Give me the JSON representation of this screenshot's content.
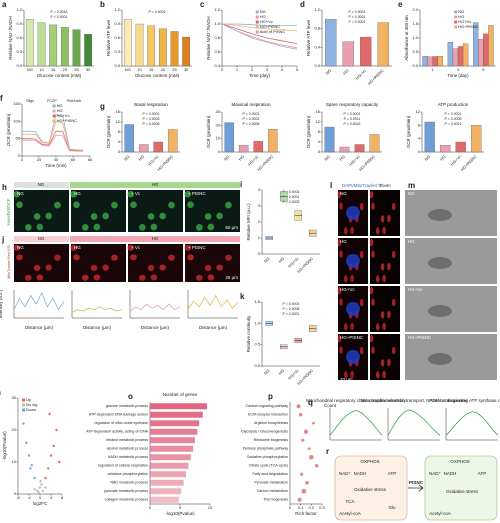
{
  "chart_data": [
    {
      "type": "bar",
      "panel": "a",
      "ylabel": "Relative NAD⁺/NADH",
      "xlabel": "Glucose content (mM)",
      "categories": [
        "NG",
        "10",
        "15",
        "20",
        "25",
        "30"
      ],
      "values": [
        1.0,
        0.93,
        0.88,
        0.83,
        0.78,
        0.68
      ],
      "colors": [
        "#d4e8b0",
        "#bcdc93",
        "#a3cf78",
        "#8cc063",
        "#6aa84f",
        "#3f8a3a"
      ],
      "ylim": [
        0,
        1.2
      ],
      "yticks": [
        {
          "value": 0,
          "label": "0.0"
        },
        0.3,
        0.6,
        0.9,
        1.2
      ],
      "annotations": [
        "P = 0.0018",
        "P < 0.0001"
      ]
    },
    {
      "type": "bar",
      "panel": "b",
      "ylabel": "Relative ATP level",
      "xlabel": "Glucose content (mM)",
      "categories": [
        "NG",
        "10",
        "15",
        "20",
        "25",
        "30"
      ],
      "values": [
        1.0,
        0.9,
        0.86,
        0.8,
        0.74,
        0.62
      ],
      "colors": [
        "#fbe9b7",
        "#f7d98c",
        "#f3c865",
        "#eeb445",
        "#e69a2e",
        "#d9801f"
      ],
      "ylim": [
        0,
        1.2
      ],
      "yticks": [
        {
          "value": 0,
          "label": "0.0"
        },
        0.3,
        0.6,
        0.9,
        1.2
      ],
      "annotations": [
        "P < 0.0001"
      ]
    },
    {
      "type": "line",
      "panel": "c",
      "ylabel": "Relative NAD⁺/NADH",
      "xlabel": "Time (day)",
      "x": [
        0,
        1,
        2,
        3,
        4,
        5
      ],
      "xlim": [
        0,
        5
      ],
      "xticks": [
        0,
        1,
        2,
        3,
        4,
        5
      ],
      "ylim": [
        0.4,
        1.2
      ],
      "yticks": [
        0.4,
        0.6,
        0.8,
        {
          "value": 1,
          "label": "1.0"
        },
        1.2
      ],
      "legend": true,
      "series": [
        {
          "name": "NG",
          "color": "#8fb3e0",
          "values": [
            1.0,
            1.0,
            0.99,
            0.98,
            0.98,
            0.98
          ]
        },
        {
          "name": "HG",
          "color": "#e59a9a",
          "values": [
            1.0,
            0.9,
            0.82,
            0.75,
            0.7,
            0.66
          ]
        },
        {
          "name": "HG+Vc",
          "color": "#c46a6a",
          "values": [
            1.0,
            0.93,
            0.86,
            0.8,
            0.76,
            0.72
          ]
        },
        {
          "name": "HG+PtSNC",
          "color": "#f2b266",
          "values": [
            1.0,
            0.98,
            0.95,
            0.93,
            0.92,
            0.9
          ]
        },
        {
          "name": "Acid of PtSNC",
          "color": "#b7a3d6",
          "values": [
            1.0,
            0.9,
            0.8,
            0.74,
            0.68,
            0.64
          ]
        }
      ]
    },
    {
      "type": "bar",
      "panel": "d",
      "ylabel": "Relative ATP level",
      "categories": [
        "NG",
        "HG",
        "HG+Vc",
        "HG+PtSNC"
      ],
      "values": [
        1.0,
        0.52,
        0.62,
        0.93
      ],
      "colors": [
        "#8fb3e0",
        "#e8a0b0",
        "#e06a6a",
        "#f2b266"
      ],
      "ylim": [
        0,
        1.2
      ],
      "yticks": [
        {
          "value": 0,
          "label": "0.0"
        },
        0.4,
        0.8,
        1.2
      ],
      "annotations": [
        "P < 0.0001",
        "P < 0.0001",
        "P = 0.0001"
      ]
    },
    {
      "type": "gbar",
      "panel": "e",
      "ylabel": "Absorbance at 450 nm",
      "xlabel": "Time (day)",
      "categories": [
        "1",
        "3",
        "5"
      ],
      "ylim": [
        0,
        2
      ],
      "yticks": [
        {
          "value": 0,
          "label": "0.0"
        },
        0.5,
        {
          "value": 1,
          "label": "1.0"
        },
        1.5,
        {
          "value": 2,
          "label": "2.0"
        }
      ],
      "legend": true,
      "series": [
        {
          "name": "NG",
          "color": "#8fb3e0",
          "values": [
            0.35,
            0.85,
            1.55
          ]
        },
        {
          "name": "HG",
          "color": "#e8a0b0",
          "values": [
            0.33,
            0.62,
            0.95
          ]
        },
        {
          "name": "HG+Vc",
          "color": "#e06a6a",
          "values": [
            0.34,
            0.7,
            1.15
          ]
        },
        {
          "name": "HG+PtSNC",
          "color": "#f2b266",
          "values": [
            0.35,
            0.8,
            1.45
          ]
        }
      ]
    },
    {
      "type": "line",
      "panel": "f",
      "ylabel": "OCR (pmol/min)",
      "xlabel": "Time (min)",
      "x": [
        0,
        8,
        16,
        24,
        32,
        40,
        48,
        56,
        64,
        72
      ],
      "xlim": [
        0,
        80
      ],
      "xticks": [
        0,
        20,
        40,
        60,
        80
      ],
      "ylim": [
        0,
        150
      ],
      "yticks": [
        0,
        50,
        100,
        150
      ],
      "legend": true,
      "annotations": [
        "Oligo",
        "FCCP",
        "Rot/AntA"
      ],
      "series": [
        {
          "name": "NG",
          "color": "#8fb3e0",
          "values": [
            70,
            72,
            70,
            40,
            38,
            120,
            115,
            20,
            18,
            17
          ]
        },
        {
          "name": "HG",
          "color": "#e8a0b0",
          "values": [
            45,
            46,
            45,
            30,
            29,
            60,
            58,
            15,
            14,
            14
          ]
        },
        {
          "name": "HG+Vc",
          "color": "#e06a6a",
          "values": [
            50,
            50,
            49,
            33,
            32,
            72,
            70,
            16,
            15,
            15
          ]
        },
        {
          "name": "HG+PtSNC",
          "color": "#f2b266",
          "values": [
            62,
            63,
            62,
            38,
            37,
            100,
            95,
            18,
            17,
            16
          ]
        }
      ]
    },
    {
      "type": "bar",
      "panel": "g",
      "title": "Basal respiration",
      "ylabel": "OCR (pmol/min)",
      "categories": [
        "NG",
        "HG",
        "HG+Vc",
        "HG+PtSNC"
      ],
      "values": [
        11,
        3,
        4,
        9
      ],
      "colors": [
        "#6f9fd8",
        "#e8a0b0",
        "#e06a6a",
        "#f2b266"
      ],
      "ylim": [
        0,
        16
      ],
      "yticks": [
        0,
        4,
        8,
        12,
        16
      ],
      "annotations": [
        "P < 0.0001",
        "P = 0.0003",
        "P = 0.0008"
      ]
    },
    {
      "type": "bar",
      "title": "Maximal respiration",
      "ylabel": "OCR (pmol/min)",
      "categories": [
        "NG",
        "HG",
        "HG+Vc",
        "HG+PtSNC"
      ],
      "values": [
        22,
        5,
        8,
        17
      ],
      "colors": [
        "#6f9fd8",
        "#e8a0b0",
        "#e06a6a",
        "#f2b266"
      ],
      "ylim": [
        0,
        30
      ],
      "yticks": [
        0,
        10,
        20,
        30
      ],
      "annotations": [
        "P < 0.0001",
        "P = 0.0002",
        "P = 0.0006"
      ]
    },
    {
      "type": "bar",
      "title": "Spare respiratory capacity",
      "ylabel": "OCR (pmol/min)",
      "categories": [
        "NG",
        "HG",
        "HG+Vc",
        "HG+PtSNC"
      ],
      "values": [
        10,
        2,
        3,
        7
      ],
      "colors": [
        "#6f9fd8",
        "#e8a0b0",
        "#e06a6a",
        "#f2b266"
      ],
      "ylim": [
        0,
        16
      ],
      "yticks": [
        0,
        4,
        8,
        12,
        16
      ],
      "annotations": [
        "P < 0.0001",
        "P = 0.0011",
        "P = 0.0042"
      ]
    },
    {
      "type": "bar",
      "title": "ATP production",
      "ylabel": "OCR (pmol/min)",
      "categories": [
        "NG",
        "HG",
        "HG+Vc",
        "HG+PtSNC"
      ],
      "values": [
        9,
        2,
        3,
        8
      ],
      "colors": [
        "#6f9fd8",
        "#e8a0b0",
        "#e06a6a",
        "#f2b266"
      ],
      "ylim": [
        0,
        12
      ],
      "yticks": [
        0,
        4,
        8,
        12
      ],
      "annotations": [
        "P < 0.0001",
        "P = 0.0005",
        "P = 0.0021"
      ]
    },
    {
      "type": "box",
      "panel": "i",
      "ylabel": "Relative MFI (a.u.)",
      "categories": [
        "NG",
        "HG",
        "HG+Vc",
        "HG+PtSNC"
      ],
      "colors": [
        "#8fb3e0",
        "#7cc47a",
        "#e8d36a",
        "#f2b266"
      ],
      "stats": [
        {
          "q1": 0.9,
          "median": 1.0,
          "q3": 1.1
        },
        {
          "q1": 3.3,
          "median": 3.6,
          "q3": 3.9
        },
        {
          "q1": 2.1,
          "median": 2.4,
          "q3": 2.7
        },
        {
          "q1": 1.1,
          "median": 1.3,
          "q3": 1.5
        }
      ],
      "ylim": [
        0,
        4
      ],
      "yticks": [
        0,
        1,
        2,
        3,
        4
      ],
      "annotations": [
        "P < 0.0001",
        "P < 0.0001",
        "P = 0.0002"
      ]
    },
    {
      "type": "box",
      "panel": "k",
      "ylabel": "Relative continuity",
      "categories": [
        "NG",
        "HG",
        "HG+Vc",
        "HG+PtSNC"
      ],
      "colors": [
        "#8fb3e0",
        "#e8a0b0",
        "#e06a6a",
        "#f2b266"
      ],
      "stats": [
        {
          "q1": 0.95,
          "median": 1.0,
          "q3": 1.05
        },
        {
          "q1": 0.4,
          "median": 0.45,
          "q3": 0.5
        },
        {
          "q1": 0.55,
          "median": 0.6,
          "q3": 0.65
        },
        {
          "q1": 0.8,
          "median": 0.88,
          "q3": 0.95
        }
      ],
      "ylim": [
        0,
        1.5
      ],
      "yticks": [
        {
          "value": 0,
          "label": "0.0"
        },
        0.5,
        {
          "value": 1,
          "label": "1.0"
        },
        1.5
      ],
      "annotations": [
        "P < 0.0001",
        "P = 0.0008",
        "P < 0.0001"
      ]
    },
    {
      "type": "scatter",
      "panel": "n",
      "ylabel": "-log10(Pvalue)",
      "xlabel": "log2FC",
      "xlim": [
        -8,
        8
      ],
      "xticks": [
        -8,
        -4,
        0,
        4,
        8
      ],
      "ylim": [
        0,
        30
      ],
      "yticks": [
        0,
        10,
        20,
        30
      ],
      "legend": true,
      "series": [
        {
          "name": "Up",
          "color": "#e06a6a",
          "x": [
            2,
            3,
            4,
            5,
            6,
            3.5,
            7
          ],
          "y": [
            5,
            8,
            12,
            15,
            20,
            25,
            10
          ]
        },
        {
          "name": "No sig",
          "color": "#bbbbbb",
          "x": [
            -1,
            0,
            1,
            -0.5,
            0.5,
            -2,
            2,
            0.2
          ],
          "y": [
            1,
            2,
            1,
            0.5,
            3,
            1.5,
            2,
            4
          ]
        },
        {
          "name": "Down",
          "color": "#6fa8dc",
          "x": [
            -2,
            -3,
            -4,
            -5,
            -6,
            -3.5
          ],
          "y": [
            5,
            9,
            12,
            16,
            22,
            8
          ]
        }
      ]
    },
    {
      "type": "hbar",
      "panel": "o",
      "title": "Number of genes",
      "xlabel": "-log10(Pvalue)",
      "color": "#e06680",
      "categories": [
        "glucose metabolic process",
        "ATP-dependent DNA damage sensor",
        "regulation of nitric-oxide synthase",
        "ATP-dependent activity, acting on DNA",
        "ethanol metabolic process",
        "alcohol metabolic process",
        "NADH metabolic process",
        "regulation of cellular respiration",
        "oxidative phosphorylation",
        "NAD metabolic process",
        "pyruvate metabolic process",
        "collagen metabolic process"
      ],
      "values": [
        9.5,
        8.8,
        8.2,
        7.9,
        7.5,
        7.2,
        6.8,
        6.4,
        6.0,
        5.6,
        5.2,
        4.8
      ],
      "xlim": [
        0,
        10
      ],
      "xticks": [
        0,
        5,
        10
      ]
    },
    {
      "type": "dot",
      "panel": "p",
      "xlabel": "Rich factor",
      "size_label": "Count",
      "color": "#d9534f",
      "categories": [
        "Calcium signaling pathway",
        "ECM-receptor interaction",
        "Arginine biosynthesis",
        "Glycolysis / Gluconeogenesis",
        "Ribosome biogenesis",
        "Pentose phosphate pathway",
        "Oxidative phosphorylation",
        "Citrate cycle (TCA cycle)",
        "Fatty acid degradation",
        "Pyruvate metabolism",
        "Carbon metabolism",
        "Thermogenesis"
      ],
      "x": [
        0.08,
        0.1,
        0.22,
        0.15,
        0.12,
        0.18,
        0.2,
        0.25,
        0.11,
        0.16,
        0.13,
        0.09
      ],
      "sizes": [
        6,
        5,
        3,
        7,
        4,
        3,
        8,
        5,
        4,
        5,
        9,
        6
      ],
      "xlim": [
        0,
        0.3
      ],
      "xticks": [
        0,
        0.1,
        0.2,
        0.3
      ]
    },
    {
      "type": "line",
      "panel": "q",
      "title": "Mitochondrial respiratory chain complex assembly",
      "x": [
        0,
        1,
        2,
        3,
        4,
        5,
        6,
        7,
        8,
        9,
        10
      ],
      "xlim": [
        0,
        10
      ],
      "ylim": [
        -0.1,
        0.6
      ],
      "series": [
        {
          "color": "#3aa655",
          "values": [
            0,
            0.15,
            0.3,
            0.42,
            0.5,
            0.55,
            0.5,
            0.4,
            0.28,
            0.14,
            0
          ]
        }
      ]
    },
    {
      "type": "line",
      "title": "Mitochondrial electron transport, NADH to ubiquinone",
      "x": [
        0,
        1,
        2,
        3,
        4,
        5,
        6,
        7,
        8,
        9,
        10
      ],
      "xlim": [
        0,
        10
      ],
      "ylim": [
        -0.1,
        0.6
      ],
      "series": [
        {
          "color": "#3aa655",
          "values": [
            0,
            0.2,
            0.38,
            0.5,
            0.56,
            0.52,
            0.44,
            0.34,
            0.22,
            0.1,
            0
          ]
        }
      ]
    },
    {
      "type": "line",
      "title": "Proton-transporting ATP synthase complex",
      "x": [
        0,
        1,
        2,
        3,
        4,
        5,
        6,
        7,
        8,
        9,
        10
      ],
      "xlim": [
        0,
        10
      ],
      "ylim": [
        -0.1,
        0.6
      ],
      "series": [
        {
          "color": "#3aa655",
          "values": [
            0,
            0.12,
            0.26,
            0.38,
            0.47,
            0.52,
            0.49,
            0.4,
            0.27,
            0.12,
            0
          ]
        }
      ]
    },
    {
      "type": "line",
      "ylabel": "Intensity (a.u.)",
      "xlabel": "Distance (µm)",
      "x": [
        0,
        1,
        2,
        3,
        4,
        5,
        6,
        7,
        8,
        9
      ],
      "xlim": [
        0,
        9
      ],
      "ylim": [
        0,
        1
      ],
      "series": [
        {
          "color": "#7fb2e5",
          "values": [
            0.3,
            0.7,
            0.4,
            0.8,
            0.5,
            0.9,
            0.4,
            0.7,
            0.3,
            0.6
          ]
        }
      ]
    },
    {
      "type": "line",
      "xlabel": "Distance (µm)",
      "x": [
        0,
        1,
        2,
        3,
        4,
        5,
        6,
        7,
        8,
        9
      ],
      "xlim": [
        0,
        9
      ],
      "ylim": [
        0,
        1
      ],
      "series": [
        {
          "color": "#9ccc65",
          "values": [
            0.2,
            0.3,
            0.25,
            0.35,
            0.3,
            0.4,
            0.3,
            0.35,
            0.25,
            0.3
          ]
        }
      ]
    },
    {
      "type": "line",
      "xlabel": "Distance (µm)",
      "x": [
        0,
        1,
        2,
        3,
        4,
        5,
        6,
        7,
        8,
        9
      ],
      "xlim": [
        0,
        9
      ],
      "ylim": [
        0,
        1
      ],
      "series": [
        {
          "color": "#e8a0b0",
          "values": [
            0.25,
            0.4,
            0.3,
            0.5,
            0.35,
            0.45,
            0.3,
            0.5,
            0.3,
            0.4
          ]
        }
      ]
    },
    {
      "type": "line",
      "xlabel": "Distance (µm)",
      "x": [
        0,
        1,
        2,
        3,
        4,
        5,
        6,
        7,
        8,
        9
      ],
      "xlim": [
        0,
        9
      ],
      "ylim": [
        0,
        1
      ],
      "series": [
        {
          "color": "#f2b266",
          "values": [
            0.3,
            0.6,
            0.4,
            0.75,
            0.45,
            0.8,
            0.4,
            0.65,
            0.35,
            0.55
          ]
        }
      ]
    }
  ],
  "panels": {
    "h": {
      "letter": "h",
      "stain": "Hoechst/DCF",
      "groups": [
        "NG",
        "HG"
      ],
      "labels": [
        "NG",
        "HG",
        "+ Vc",
        "+ PtSNC"
      ],
      "scale": "50 µm"
    },
    "j": {
      "letter": "j",
      "stain": "MitoTracker Red 633",
      "groups": [
        "NG",
        "HG"
      ],
      "labels": [
        "NG",
        "HG",
        "+ Vc",
        "+ PtSNC"
      ],
      "scale": "25 µm"
    },
    "l": {
      "letter": "l",
      "stain": "DAPI/MitoTracker™",
      "zoom": "Zoom",
      "labels": [
        "NG",
        "HG",
        "HG+Vc",
        "HG+PtSNC"
      ],
      "scale": "10 µm"
    },
    "m": {
      "letter": "m",
      "labels": [
        "NG",
        "HG",
        "HG+Vc",
        "HG+PtSNC"
      ]
    },
    "r": {
      "letter": "r",
      "labels": [
        "OXPHOS",
        "NAD⁺",
        "NADH",
        "ATP",
        "Oxidative stress",
        "TCA",
        "Acetyl-coA",
        "Glu",
        "OXPHOS",
        "NAD⁺",
        "NADH",
        "ATP",
        "Oxidative stress",
        "Acetyl-coA"
      ],
      "arrow": "PtSNC"
    }
  }
}
